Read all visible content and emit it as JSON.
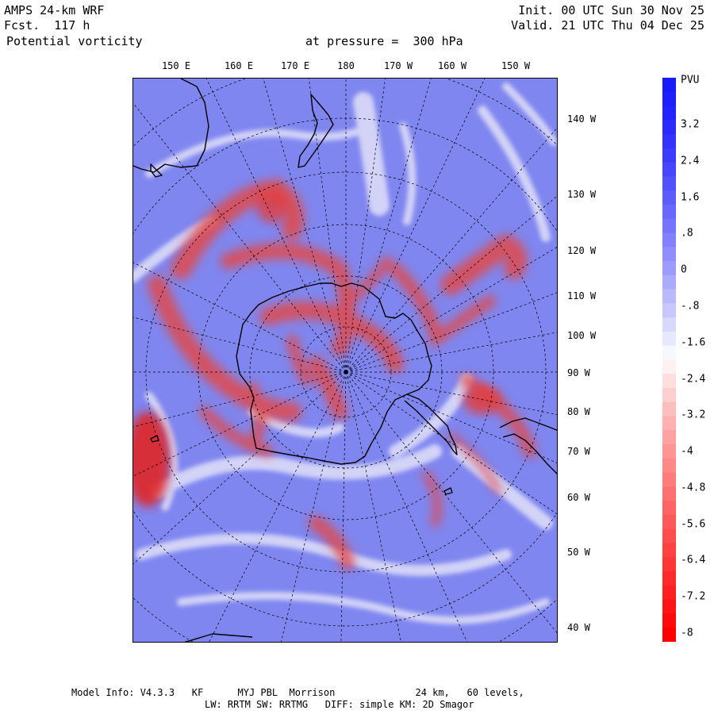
{
  "header": {
    "model_name": "AMPS 24-km WRF",
    "forecast": "Fcst.  117 h",
    "field": "Potential vorticity",
    "pressure_level": "at pressure =  300 hPa",
    "init_time": "Init. 00 UTC Sun 30 Nov 25",
    "valid_time": "Valid. 21 UTC Thu 04 Dec 25"
  },
  "top_longitude_labels": [
    "150 E",
    "160 E",
    "170 E",
    "180",
    "170 W",
    "160 W",
    "150 W"
  ],
  "right_longitude_labels": [
    "140 W",
    "130 W",
    "120 W",
    "110 W",
    "100 W",
    "90 W",
    "80 W",
    "70 W",
    "60 W",
    "50 W",
    "40 W"
  ],
  "colorbar": {
    "unit": "PVU",
    "tick_labels": [
      "3.2",
      "2.4",
      "1.6",
      ".8",
      "0",
      "-.8",
      "-1.6",
      "-2.4",
      "-3.2",
      "-4",
      "-4.8",
      "-5.6",
      "-6.4",
      "-7.2",
      "-8"
    ],
    "top_color": "#1a1aff",
    "mid_color": "#ffffff",
    "bottom_color": "#ff0000"
  },
  "colors": {
    "background_field": "#7f86ef",
    "positive_pv": "#e04040",
    "coastline": "#000000",
    "gridline": "#000000"
  },
  "footer": {
    "line1": "Model Info: V4.3.3   KF      MYJ PBL  Morrison              24 km,   60 levels,",
    "line2": "LW: RRTM SW: RRTMG   DIFF: simple KM: 2D Smagor"
  }
}
